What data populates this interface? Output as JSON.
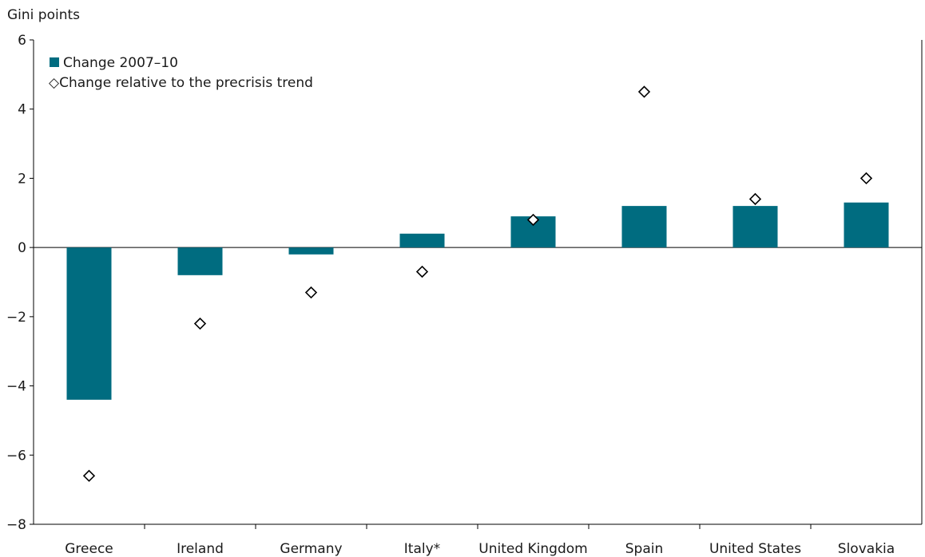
{
  "chart_data": {
    "type": "bar",
    "ylabel": "Gini points",
    "ylim": [
      -8,
      6
    ],
    "yticks": [
      6,
      4,
      2,
      0,
      -2,
      -4,
      -6,
      -8
    ],
    "ytick_labels": [
      "6",
      "4",
      "2",
      "0",
      "−2",
      "−4",
      "−6",
      "−8"
    ],
    "categories": [
      "Greece",
      "Ireland",
      "Germany",
      "Italy*",
      "United Kingdom",
      "Spain",
      "United States",
      "Slovakia"
    ],
    "series": [
      {
        "name": "Change 2007–10",
        "kind": "bar",
        "color": "#006C80",
        "values": [
          -4.4,
          -0.8,
          -0.2,
          0.4,
          0.9,
          1.2,
          1.2,
          1.3
        ]
      },
      {
        "name": "Change relative to the precrisis trend",
        "kind": "marker",
        "marker": "diamond",
        "values": [
          -6.6,
          -2.2,
          -1.3,
          -0.7,
          0.8,
          4.5,
          1.4,
          2.0
        ]
      }
    ],
    "legend": {
      "position": "top-left",
      "bar_label": "Change 2007–10",
      "marker_label": "◇Change relative to the precrisis trend"
    },
    "grid": false
  }
}
